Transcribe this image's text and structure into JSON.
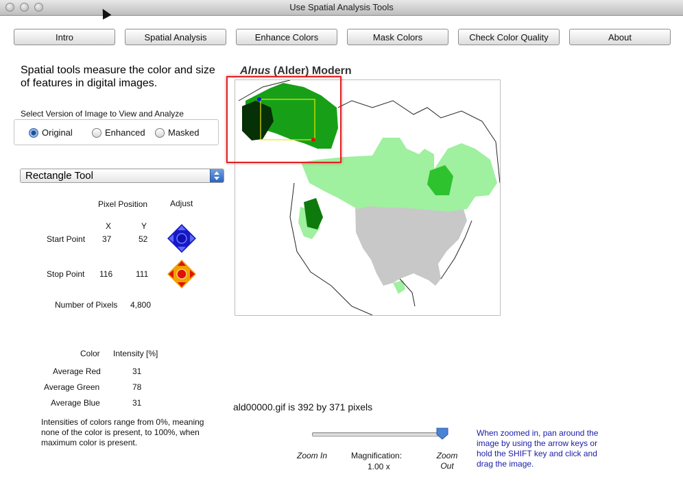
{
  "window": {
    "title": "Use Spatial Analysis Tools"
  },
  "tabs": [
    {
      "label": "Intro"
    },
    {
      "label": "Spatial Analysis"
    },
    {
      "label": "Enhance Colors"
    },
    {
      "label": "Mask Colors"
    },
    {
      "label": "Check Color Quality"
    },
    {
      "label": "About"
    }
  ],
  "intro_text": "Spatial tools measure the color and size of features in digital images.",
  "version": {
    "label": "Select Version of Image to View and Analyze",
    "options": [
      "Original",
      "Enhanced",
      "Masked"
    ],
    "selected": "Original"
  },
  "tool_select": {
    "value": "Rectangle Tool"
  },
  "pixel_position": {
    "header": "Pixel Position",
    "adjust_header": "Adjust",
    "x_label": "X",
    "y_label": "Y",
    "start": {
      "label": "Start Point",
      "x": "37",
      "y": "52"
    },
    "stop": {
      "label": "Stop Point",
      "x": "116",
      "y": "111"
    },
    "count_label": "Number of Pixels",
    "count": "4,800"
  },
  "color": {
    "col_header": "Color",
    "int_header": "Intensity [%]",
    "rows": [
      {
        "label": "Average Red",
        "value": "31"
      },
      {
        "label": "Average Green",
        "value": "78"
      },
      {
        "label": "Average Blue",
        "value": "31"
      }
    ],
    "note": "Intensities of colors range from 0%, meaning none of the color is present, to 100%, when maximum color is present."
  },
  "map": {
    "title_genus": "Alnus",
    "title_rest": " (Alder) Modern",
    "filename_text": "ald00000.gif is 392 by 371 pixels"
  },
  "zoom": {
    "zoom_in": "Zoom In",
    "zoom_out": "Zoom Out",
    "mag_label": "Magnification:",
    "mag_value": "1.00 x",
    "level": 1.0
  },
  "help_text": "When zoomed in, pan around the image by using the arrow keys or hold the SHIFT key and click and drag the image.",
  "colors": {
    "accent_blue": "#1a1aa8",
    "selection_red": "#e02020",
    "map_dark_green": "#0e7a0e",
    "map_light_green": "#9ff09f",
    "map_gray": "#c8c8c8"
  }
}
